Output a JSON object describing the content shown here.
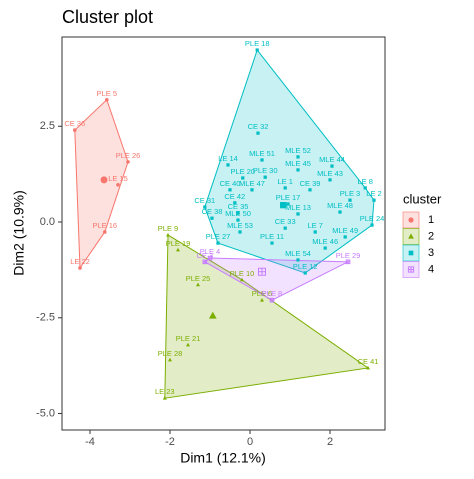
{
  "chart_data": {
    "type": "scatter",
    "title": "Cluster plot",
    "x_label": "Dim1 (12.1%)",
    "y_label": "Dim2 (10.9%)",
    "legend_title": "cluster",
    "xlim": [
      -4.7,
      3.375
    ],
    "ylim": [
      -5.43,
      4.83
    ],
    "xticks": [
      -4,
      -2,
      0,
      2
    ],
    "yticks": [
      2.5,
      {
        "value": 0,
        "label": "0.0"
      },
      -2.5,
      {
        "value": -5,
        "label": "-5.0"
      }
    ],
    "grid": false,
    "series": [
      {
        "name": "1",
        "color": "#F8766D",
        "marker": "circle",
        "labels": [
          "PLE 5",
          "CE 36",
          "PLE 26",
          "LE 15",
          "PLE 16",
          "LE 22"
        ],
        "x": [
          -3.58,
          -4.38,
          -3.05,
          -3.3,
          -3.63,
          -4.25
        ],
        "values": [
          3.19,
          2.4,
          1.57,
          0.97,
          -0.26,
          -1.2
        ],
        "center": [
          -3.65,
          1.1
        ]
      },
      {
        "name": "2",
        "color": "#7CAE00",
        "marker": "triangle",
        "labels": [
          "PLE 9",
          "PLE 19",
          "PLE 25",
          "PLE 21",
          "PLE 28",
          "LE 23",
          "CE 41",
          "PLE 10",
          "PLE 6"
        ],
        "x": [
          -2.05,
          -1.8,
          -1.3,
          -1.55,
          -2.0,
          -2.13,
          2.95,
          -0.2,
          0.3
        ],
        "values": [
          -0.34,
          -0.73,
          -1.64,
          -3.21,
          -3.6,
          -4.6,
          -3.81,
          -1.51,
          -2.04
        ],
        "center": [
          -0.93,
          -2.45
        ]
      },
      {
        "name": "3",
        "color": "#00BFC4",
        "marker": "square",
        "labels": [
          "PLE 18",
          "CE 32",
          "MLE 52",
          "MLE 51",
          "MLE 44",
          "LE 14",
          "MLE 45",
          "MLE 43",
          "PLE 30",
          "PLE 20",
          "MLE 47",
          "LE 1",
          "CE 39",
          "CE 40",
          "LE 8",
          "PLE 3",
          "LE 2",
          "PLE 17",
          "CE 42",
          "CE 31",
          "CE 35",
          "MLE 13",
          "MLE 48",
          "MLE 50",
          "CE 38",
          "PLE 24",
          "CE 33",
          "MLE 53",
          "LE 7",
          "MLE 49",
          "PLE 27",
          "PLE 11",
          "MLE 46",
          "MLE 54",
          "PLE 12"
        ],
        "x": [
          0.18,
          0.2,
          1.2,
          0.3,
          2.05,
          -0.55,
          1.2,
          2.0,
          0.38,
          -0.18,
          0.05,
          0.88,
          1.5,
          -0.5,
          2.88,
          2.5,
          3.1,
          0.95,
          -0.38,
          -1.13,
          -0.3,
          1.2,
          2.25,
          -0.3,
          -0.95,
          3.05,
          0.88,
          -0.25,
          1.63,
          2.38,
          -0.8,
          0.55,
          1.88,
          1.2,
          1.38
        ],
        "values": [
          4.49,
          2.32,
          1.7,
          1.62,
          1.46,
          1.49,
          1.36,
          1.1,
          1.17,
          1.15,
          0.84,
          0.89,
          0.84,
          0.84,
          0.89,
          0.57,
          0.57,
          0.47,
          0.5,
          0.39,
          0.23,
          0.21,
          0.26,
          0.05,
          0.1,
          -0.08,
          -0.16,
          -0.26,
          -0.26,
          -0.39,
          -0.55,
          -0.55,
          -0.68,
          -0.99,
          -1.33
        ],
        "center": [
          0.83,
          0.44
        ]
      },
      {
        "name": "4",
        "color": "#C77CFF",
        "marker": "crossbox",
        "labels": [
          "CE 3",
          "PLE 4",
          "PLE 29",
          "PLE 8"
        ],
        "x": [
          -1.13,
          -1.0,
          2.45,
          0.55
        ],
        "values": [
          -1.04,
          -0.94,
          -1.04,
          -2.04
        ],
        "center": [
          0.3,
          -1.3
        ]
      }
    ]
  }
}
